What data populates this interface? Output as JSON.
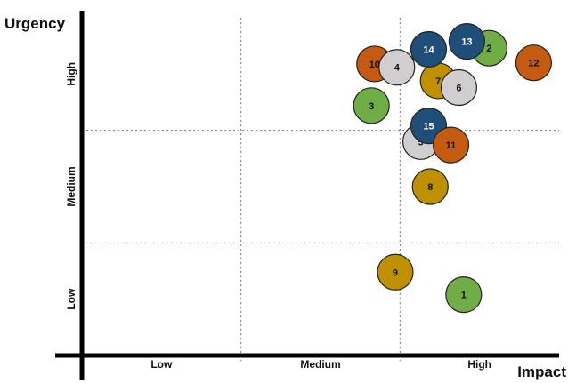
{
  "chart_data": {
    "type": "scatter",
    "title": "",
    "xlabel": "Impact",
    "ylabel": "Urgency",
    "x_ticks": [
      "Low",
      "Medium",
      "High"
    ],
    "y_ticks": [
      "Low",
      "Medium",
      "High"
    ],
    "xlim": [
      0,
      3
    ],
    "ylim": [
      0,
      3
    ],
    "grid": "dotted lines between Low, Medium and High zones",
    "legend": "none",
    "colors": {
      "green": "#70ad47",
      "orange": "#c55a11",
      "blue": "#1f4e79",
      "gold": "#bf9000",
      "gray": "#d0cece",
      "outline": "#222222"
    },
    "points": [
      {
        "label": "1",
        "x": 2.4,
        "y": 0.54,
        "color": "green"
      },
      {
        "label": "2",
        "x": 2.56,
        "y": 2.73,
        "color": "green"
      },
      {
        "label": "3",
        "x": 1.82,
        "y": 2.22,
        "color": "green"
      },
      {
        "label": "5",
        "x": 2.13,
        "y": 1.9,
        "color": "gray"
      },
      {
        "label": "8",
        "x": 2.19,
        "y": 1.5,
        "color": "gold"
      },
      {
        "label": "9",
        "x": 1.97,
        "y": 0.74,
        "color": "gold"
      },
      {
        "label": "10",
        "x": 1.84,
        "y": 2.59,
        "color": "orange"
      },
      {
        "label": "4",
        "x": 1.98,
        "y": 2.56,
        "color": "gray"
      },
      {
        "label": "7",
        "x": 2.24,
        "y": 2.44,
        "color": "gold"
      },
      {
        "label": "6",
        "x": 2.37,
        "y": 2.38,
        "color": "gray"
      },
      {
        "label": "12",
        "x": 2.84,
        "y": 2.6,
        "color": "orange"
      },
      {
        "label": "14",
        "x": 2.18,
        "y": 2.72,
        "color": "blue"
      },
      {
        "label": "13",
        "x": 2.42,
        "y": 2.79,
        "color": "blue"
      },
      {
        "label": "15",
        "x": 2.18,
        "y": 2.04,
        "color": "blue"
      },
      {
        "label": "11",
        "x": 2.32,
        "y": 1.87,
        "color": "orange"
      }
    ]
  }
}
